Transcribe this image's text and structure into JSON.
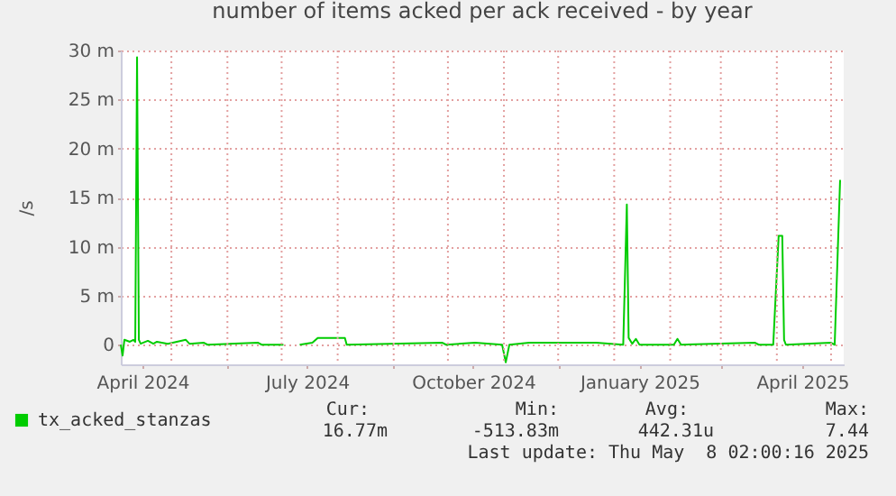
{
  "chart_data": {
    "type": "line",
    "title": "number of items acked per ack received - by year",
    "ylabel": "/s",
    "x": [
      "2024-04-03",
      "2024-04-04",
      "2024-04-05",
      "2024-04-08",
      "2024-04-10",
      "2024-04-11",
      "2024-04-12",
      "2024-04-13",
      "2024-04-14",
      "2024-04-18",
      "2024-04-21",
      "2024-04-23",
      "2024-04-29",
      "2024-05-09",
      "2024-05-11",
      "2024-05-19",
      "2024-05-21",
      "2024-06-18",
      "2024-06-20",
      "2024-07-02",
      "2024-07-06",
      "2024-07-11",
      "2024-07-18",
      "2024-07-21",
      "2024-08-05",
      "2024-08-06",
      "2024-09-28",
      "2024-09-30",
      "2024-10-16",
      "2024-10-31",
      "2024-11-02",
      "2024-11-04",
      "2024-11-15",
      "2024-12-22",
      "2025-01-06",
      "2025-01-08",
      "2025-01-09",
      "2025-01-11",
      "2025-01-13",
      "2025-01-15",
      "2025-02-03",
      "2025-02-05",
      "2025-02-07",
      "2025-03-20",
      "2025-03-22",
      "2025-03-30",
      "2025-04-02",
      "2025-04-04",
      "2025-04-05",
      "2025-04-06",
      "2025-05-01",
      "2025-05-03",
      "2025-05-06"
    ],
    "series": [
      {
        "name": "tx_acked_stanzas",
        "color": "#00cc00",
        "values": [
          0,
          -1.1,
          0.5,
          0.3,
          0.5,
          0.3,
          29.3,
          0.5,
          0.1,
          0.4,
          0.1,
          0.3,
          0.1,
          0.5,
          0.1,
          0.2,
          0,
          0.2,
          0,
          0,
          null,
          0,
          0.2,
          0.7,
          0.7,
          0,
          0.2,
          0,
          0.2,
          0,
          -1.8,
          0,
          0.2,
          0.2,
          0,
          14.3,
          0.7,
          0.1,
          0.6,
          0,
          0,
          0.6,
          0,
          0.2,
          0,
          0,
          11.1,
          11.1,
          0.5,
          0,
          0.2,
          0,
          16.8
        ]
      }
    ],
    "xlim": [
      "2024-04-03",
      "2025-05-08"
    ],
    "xticks": [
      {
        "value": "2024-04-15",
        "label": "April 2024"
      },
      {
        "value": "2024-05-01",
        "label": null
      },
      {
        "value": "2024-06-01",
        "label": null
      },
      {
        "value": "2024-07-01",
        "label": null
      },
      {
        "value": "2024-07-15",
        "label": "July 2024"
      },
      {
        "value": "2024-08-01",
        "label": null
      },
      {
        "value": "2024-09-01",
        "label": null
      },
      {
        "value": "2024-10-01",
        "label": null
      },
      {
        "value": "2024-10-15",
        "label": "October 2024"
      },
      {
        "value": "2024-11-01",
        "label": null
      },
      {
        "value": "2024-12-01",
        "label": null
      },
      {
        "value": "2025-01-01",
        "label": null
      },
      {
        "value": "2025-01-15",
        "label": "January 2025"
      },
      {
        "value": "2025-02-01",
        "label": null
      },
      {
        "value": "2025-03-01",
        "label": null
      },
      {
        "value": "2025-04-01",
        "label": null
      },
      {
        "value": "2025-04-15",
        "label": "April 2025"
      },
      {
        "value": "2025-05-01",
        "label": null
      }
    ],
    "ylim": [
      -2,
      30
    ],
    "yticks": [
      0,
      {
        "value": 5,
        "label": "5 m"
      },
      {
        "value": 10,
        "label": "10 m"
      },
      {
        "value": 15,
        "label": "15 m"
      },
      {
        "value": 20,
        "label": "20 m"
      },
      {
        "value": 25,
        "label": "25 m"
      },
      {
        "value": 30,
        "label": "30 m"
      }
    ],
    "grid": true,
    "legend": "bottom left",
    "annotations": [
      "Cur:",
      "Min:",
      "Avg:",
      "Max:",
      "16.77m",
      "-513.83m",
      "442.31u",
      "7.44",
      "Last update: Thu May  8 02:00:16 2025"
    ]
  }
}
